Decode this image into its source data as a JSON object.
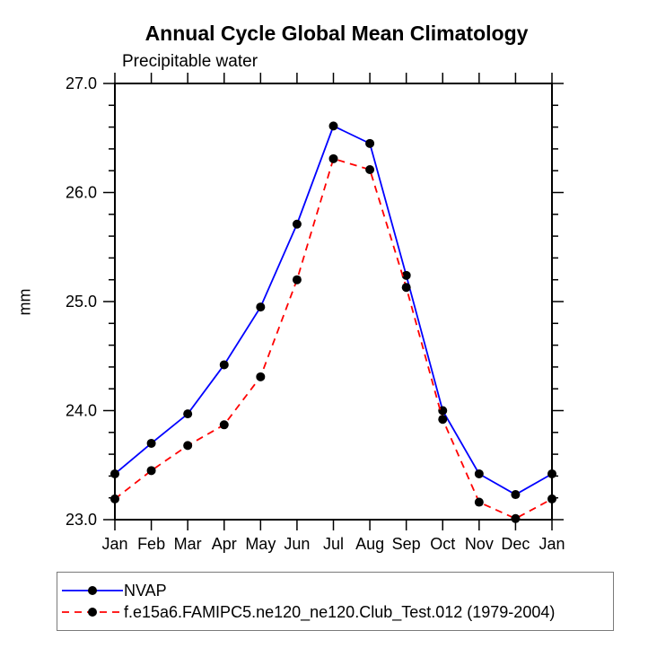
{
  "chart_data": {
    "type": "line",
    "title": "Annual Cycle Global Mean Climatology",
    "subtitle": "Precipitable water",
    "ylabel": "mm",
    "xlabel": "",
    "categories": [
      "Jan",
      "Feb",
      "Mar",
      "Apr",
      "May",
      "Jun",
      "Jul",
      "Aug",
      "Sep",
      "Oct",
      "Nov",
      "Dec",
      "Jan"
    ],
    "series": [
      {
        "name": "NVAP",
        "color": "#0000ff",
        "line_style": "solid",
        "marker": "filled-circle",
        "marker_color": "#000000",
        "values": [
          23.42,
          23.7,
          23.97,
          24.42,
          24.95,
          25.71,
          26.61,
          26.45,
          25.24,
          24.0,
          23.42,
          23.23,
          23.42
        ]
      },
      {
        "name": "f.e15a6.FAMIPC5.ne120_ne120.Club_Test.012 (1979-2004)",
        "color": "#ff0000",
        "line_style": "dashed",
        "marker": "filled-circle",
        "marker_color": "#000000",
        "values": [
          23.19,
          23.45,
          23.68,
          23.87,
          24.31,
          25.2,
          26.31,
          26.21,
          25.13,
          23.92,
          23.16,
          23.01,
          23.19
        ]
      }
    ],
    "ylim": [
      23.0,
      27.0
    ],
    "ytick_major": 1.0,
    "ytick_minor": 0.2,
    "ytick_labels": [
      "23.0",
      "24.0",
      "25.0",
      "26.0",
      "27.0"
    ],
    "grid": false,
    "tick_direction": "out",
    "frame_color": "#000000",
    "legend_position": "bottom-left",
    "legend_border_color": "#7a7a7a"
  }
}
